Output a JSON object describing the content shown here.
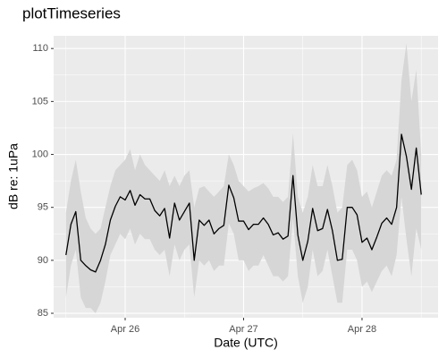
{
  "chart_data": {
    "type": "line",
    "title": "plotTimeseries",
    "x_label": "Date (UTC)",
    "y_label": "dB re: 1uPa",
    "x": [
      25.5,
      25.542,
      25.583,
      25.625,
      25.667,
      25.708,
      25.75,
      25.792,
      25.833,
      25.875,
      25.917,
      25.958,
      26,
      26.042,
      26.083,
      26.125,
      26.167,
      26.208,
      26.25,
      26.292,
      26.333,
      26.375,
      26.417,
      26.458,
      26.5,
      26.542,
      26.583,
      26.625,
      26.667,
      26.708,
      26.75,
      26.792,
      26.833,
      26.875,
      26.917,
      26.958,
      27,
      27.042,
      27.083,
      27.125,
      27.167,
      27.208,
      27.25,
      27.292,
      27.333,
      27.375,
      27.417,
      27.458,
      27.5,
      27.542,
      27.583,
      27.625,
      27.667,
      27.708,
      27.75,
      27.792,
      27.833,
      27.875,
      27.917,
      27.958,
      28,
      28.042,
      28.083,
      28.125,
      28.167,
      28.208,
      28.25,
      28.292,
      28.333,
      28.375,
      28.417,
      28.458,
      28.5
    ],
    "series": [
      {
        "color": "#000000",
        "band_color": "#d6d6d6",
        "values": [
          90.5,
          93.4,
          94.6,
          90.0,
          89.5,
          89.1,
          88.9,
          90.0,
          91.5,
          93.8,
          95.1,
          96.0,
          95.7,
          96.6,
          95.2,
          96.2,
          95.8,
          95.8,
          94.7,
          94.2,
          94.9,
          92.1,
          95.4,
          93.8,
          94.6,
          95.4,
          90.0,
          93.8,
          93.3,
          93.8,
          92.5,
          93.0,
          93.3,
          97.1,
          95.9,
          93.7,
          93.7,
          92.9,
          93.4,
          93.4,
          94.0,
          93.4,
          92.4,
          92.6,
          92.0,
          92.3,
          98.0,
          92.4,
          90.0,
          91.8,
          94.9,
          92.8,
          93.0,
          94.8,
          92.8,
          90.0,
          90.1,
          95.0,
          95.0,
          94.3,
          91.7,
          92.1,
          91.0,
          92.2,
          93.5,
          94.0,
          93.4,
          95.0,
          101.9,
          99.8,
          96.7,
          100.6,
          96.2
        ],
        "band_upper": [
          94.5,
          97.5,
          99.5,
          96.5,
          94,
          93,
          92.5,
          93,
          95,
          97,
          98.5,
          99,
          99.5,
          100.5,
          98.5,
          100,
          99,
          98.5,
          98,
          97.5,
          98.5,
          97,
          98,
          97,
          98,
          98.5,
          95,
          96.8,
          97,
          96.5,
          96,
          96.5,
          97,
          100,
          99,
          97.5,
          97,
          96.5,
          96.8,
          97,
          97.3,
          96.8,
          96,
          96,
          95.5,
          96,
          102,
          96,
          94.5,
          96,
          99,
          97,
          97,
          99,
          97,
          94.5,
          95,
          99,
          99.5,
          98.5,
          96,
          96.5,
          95,
          96.5,
          98,
          98.5,
          98,
          99.5,
          107,
          110.5,
          105,
          108,
          100
        ],
        "band_lower": [
          86.5,
          89.5,
          91,
          86.5,
          85.5,
          85.5,
          85,
          86,
          88,
          90.5,
          91.5,
          92.5,
          92,
          93,
          91.5,
          92.5,
          92,
          92,
          91,
          90.5,
          91,
          88.5,
          91.5,
          90,
          91,
          91.5,
          86.5,
          90,
          89.5,
          90,
          89,
          89.5,
          89.5,
          93.5,
          92.5,
          90,
          90,
          89,
          89.5,
          89.5,
          90.5,
          89.5,
          88.5,
          88.5,
          88,
          88.5,
          94,
          88.5,
          86,
          87.5,
          91,
          88.5,
          89,
          91,
          88.5,
          86,
          86,
          91,
          91,
          90,
          87.5,
          88,
          87,
          88,
          89,
          89.5,
          88.5,
          90.5,
          96,
          92,
          88.5,
          93,
          91
        ]
      }
    ],
    "xlim": [
      25.396,
      28.642
    ],
    "xticks": [
      {
        "value": 26,
        "label": "Apr 26"
      },
      {
        "value": 27,
        "label": "Apr 27"
      },
      {
        "value": 28,
        "label": "Apr 28"
      }
    ],
    "ylim": [
      84.58,
      111.2
    ],
    "yticks": [
      85,
      90,
      95,
      100,
      105,
      110
    ],
    "grid": true
  }
}
